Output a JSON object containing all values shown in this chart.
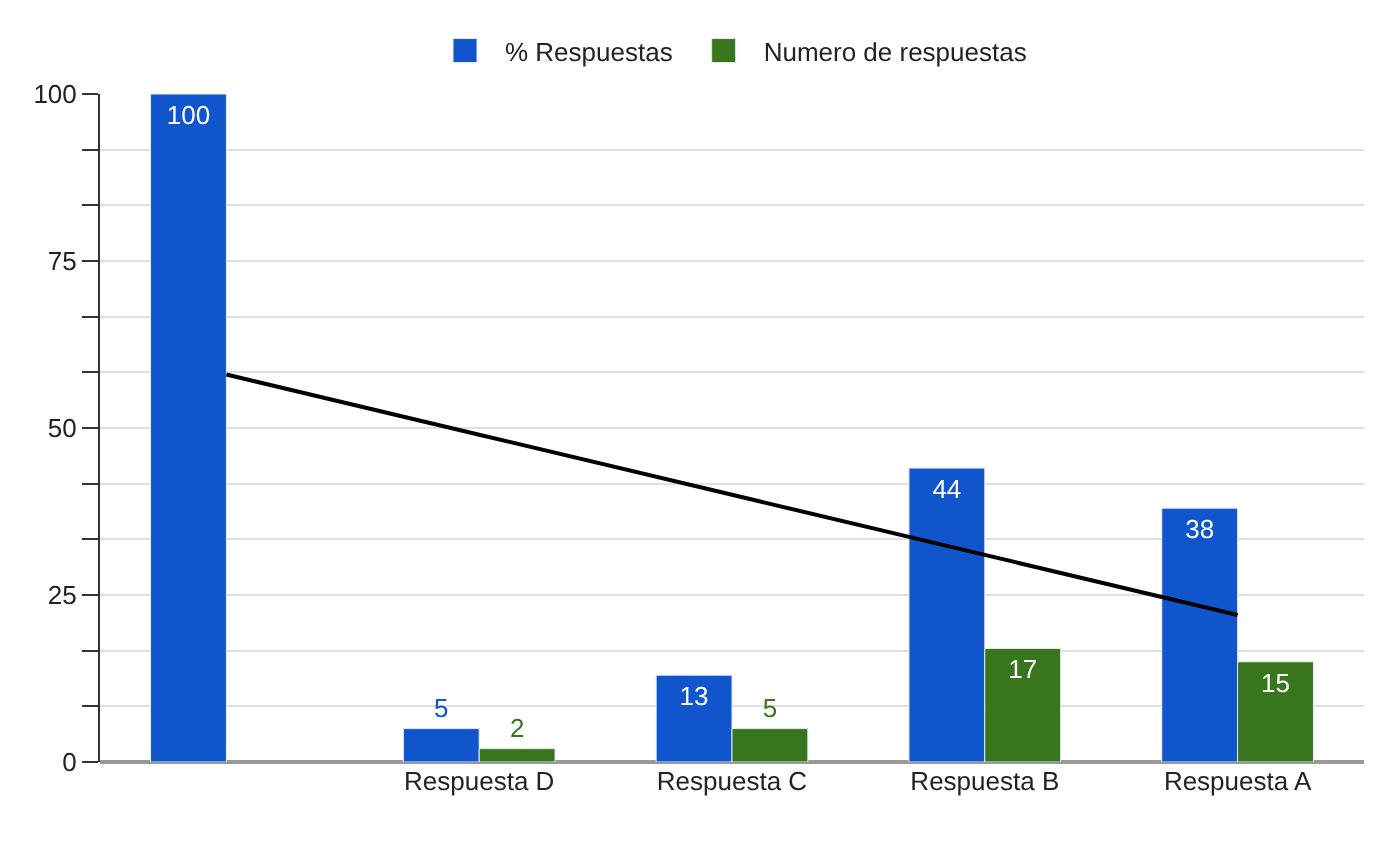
{
  "chart_data": {
    "type": "bar",
    "categories": [
      null,
      "Respuesta D",
      "Respuesta C",
      "Respuesta B",
      "Respuesta A"
    ],
    "series": [
      {
        "name": "% Respuestas",
        "color": "#1155cc",
        "values": [
          100,
          5,
          13,
          44,
          38
        ],
        "value_labels": [
          "100",
          "5",
          "13",
          "44",
          "38"
        ]
      },
      {
        "name": "Numero de respuestas",
        "color": "#38761d",
        "values": [
          null,
          2,
          5,
          17,
          15
        ],
        "value_labels": [
          null,
          "2",
          "5",
          "17",
          "15"
        ]
      },
      {
        "type": "line",
        "color": "#000000",
        "values": [
          58,
          49,
          40,
          31,
          22
        ]
      }
    ],
    "ylim": [
      0,
      100
    ],
    "yticks": [
      0,
      {
        "value": 8.33,
        "label": null
      },
      {
        "value": 16.67,
        "label": null
      },
      25,
      {
        "value": 33.33,
        "label": null
      },
      {
        "value": 41.67,
        "label": null
      },
      50,
      {
        "value": 58.33,
        "label": null
      },
      {
        "value": 66.67,
        "label": null
      },
      75,
      {
        "value": 83.33,
        "label": null
      },
      {
        "value": 91.67,
        "label": null
      },
      100
    ],
    "grid": "y",
    "legend": "top"
  }
}
